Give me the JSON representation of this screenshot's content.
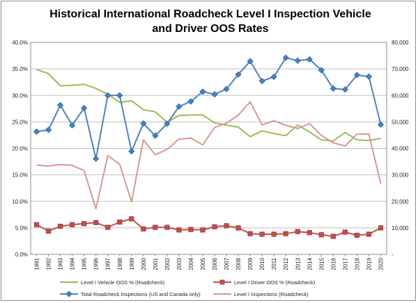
{
  "chart_data": {
    "type": "line",
    "title": "Historical International Roadcheck Level I Inspection Vehicle and Driver OOS Rates",
    "x": [
      "1991",
      "1992",
      "1993",
      "1994",
      "1995",
      "1996",
      "1997",
      "1998",
      "1999",
      "2000",
      "2001",
      "2002",
      "2003",
      "2004",
      "2005",
      "2006",
      "2007",
      "2008",
      "2009",
      "2010",
      "2011",
      "2012",
      "2013",
      "2014",
      "2015",
      "2016",
      "2017",
      "2018",
      "2019",
      "2020"
    ],
    "y_left": {
      "min": 0,
      "max": 40,
      "ticks": [
        "0.0%",
        "5.0%",
        "10.0%",
        "15.0%",
        "20.0%",
        "25.0%",
        "30.0%",
        "35.0%",
        "40.0%"
      ]
    },
    "y_right": {
      "min": 0,
      "max": 80000,
      "ticks": [
        "-",
        "10,000",
        "20,000",
        "30,000",
        "40,000",
        "50,000",
        "60,000",
        "70,000",
        "80,000"
      ]
    },
    "grid": true,
    "legend_position": "bottom",
    "series": [
      {
        "name": "Level I Vehicle OOS % (Roadcheck)",
        "axis": "left",
        "color": "#9bbb59",
        "marker": "none",
        "values": [
          34.9,
          34.1,
          31.8,
          31.9,
          32.1,
          31.3,
          30.2,
          28.7,
          29.0,
          27.3,
          26.9,
          24.9,
          26.2,
          26.3,
          26.3,
          24.8,
          24.4,
          24.0,
          22.2,
          23.3,
          22.8,
          22.4,
          24.4,
          23.1,
          21.6,
          21.4,
          23.0,
          21.6,
          21.5,
          21.9
        ]
      },
      {
        "name": "Level I Driver OOS % (Roadcheck)",
        "axis": "left",
        "color": "#c0504d",
        "stroke": "#953735",
        "marker": "square",
        "values": [
          5.6,
          4.4,
          5.3,
          5.6,
          5.8,
          6.0,
          5.1,
          6.1,
          6.7,
          4.8,
          5.1,
          5.1,
          4.6,
          4.7,
          4.6,
          5.2,
          5.4,
          5.0,
          3.9,
          3.8,
          3.8,
          3.9,
          4.3,
          4.1,
          3.7,
          3.4,
          4.2,
          3.6,
          3.8,
          5.0
        ]
      },
      {
        "name": "Total Roadcheck Inspections (US and Canada only)",
        "axis": "right",
        "color": "#4f81bd",
        "stroke": "#1f5fa8",
        "marker": "diamond",
        "values": [
          46300,
          47000,
          56300,
          48700,
          55200,
          36100,
          60000,
          60000,
          38900,
          49400,
          44800,
          49300,
          55800,
          57700,
          61400,
          60400,
          62400,
          67900,
          72900,
          65400,
          67000,
          74200,
          73100,
          73600,
          69500,
          62600,
          62200,
          67700,
          67100,
          49000
        ]
      },
      {
        "name": "Level I Inspections (Roadcheck)",
        "axis": "right",
        "color": "#d99694",
        "marker": "none",
        "values": [
          33700,
          33300,
          33900,
          33600,
          31600,
          17200,
          37300,
          34000,
          19800,
          43200,
          37600,
          39600,
          43500,
          43900,
          41300,
          47900,
          49500,
          52600,
          57600,
          48900,
          50400,
          48700,
          47500,
          49400,
          44900,
          42100,
          40900,
          45400,
          45400,
          26700
        ]
      }
    ]
  }
}
